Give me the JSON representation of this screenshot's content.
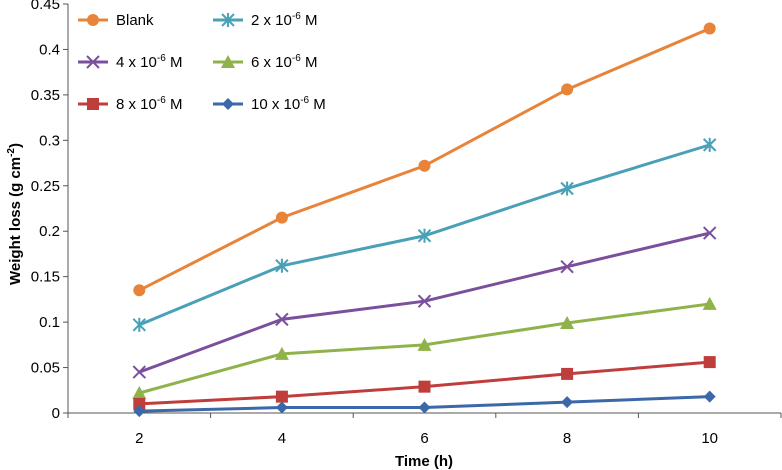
{
  "chart_data": {
    "type": "line",
    "title": "",
    "xlabel": "Time (h)",
    "ylabel_main": "Weight loss (g cm",
    "ylabel_sup": "-2",
    "ylabel_close": ")",
    "x": [
      2,
      4,
      6,
      8,
      10
    ],
    "x_ticks": [
      "2",
      "4",
      "6",
      "8",
      "10"
    ],
    "xlim": [
      1,
      11
    ],
    "ylim": [
      0,
      0.45
    ],
    "y_ticks": [
      "0",
      "0.05",
      "0.1",
      "0.15",
      "0.2",
      "0.25",
      "0.3",
      "0.35",
      "0.4",
      "0.45"
    ],
    "grid": false,
    "legend_position": "top-left",
    "series": [
      {
        "name": "Blank",
        "label_main": "Blank",
        "label_exp": "",
        "label_unit": "",
        "color": "#e8843a",
        "marker": "circle",
        "values": [
          0.135,
          0.215,
          0.272,
          0.356,
          0.423
        ]
      },
      {
        "name": "2 x 10-6 M",
        "label_main": "2 x 10",
        "label_exp": "-6",
        "label_unit": " M",
        "color": "#4aa0b6",
        "marker": "star",
        "values": [
          0.097,
          0.162,
          0.195,
          0.247,
          0.295
        ]
      },
      {
        "name": "4 x 10-6 M",
        "label_main": "4 x 10",
        "label_exp": "-6",
        "label_unit": " M",
        "color": "#7a4f9c",
        "marker": "x",
        "values": [
          0.045,
          0.103,
          0.123,
          0.161,
          0.198
        ]
      },
      {
        "name": "6 x 10-6 M",
        "label_main": "6 x 10",
        "label_exp": "-6",
        "label_unit": " M",
        "color": "#8fb34a",
        "marker": "triangle",
        "values": [
          0.022,
          0.065,
          0.075,
          0.099,
          0.12
        ]
      },
      {
        "name": "8 x 10-6 M",
        "label_main": "8 x 10",
        "label_exp": "-6",
        "label_unit": " M",
        "color": "#bf3e3b",
        "marker": "square",
        "values": [
          0.01,
          0.018,
          0.029,
          0.043,
          0.056
        ]
      },
      {
        "name": "10 x 10-6 M",
        "label_main": "10 x 10",
        "label_exp": "-6",
        "label_unit": " M",
        "color": "#3b68a8",
        "marker": "diamond",
        "values": [
          0.002,
          0.006,
          0.006,
          0.012,
          0.018
        ]
      }
    ]
  }
}
